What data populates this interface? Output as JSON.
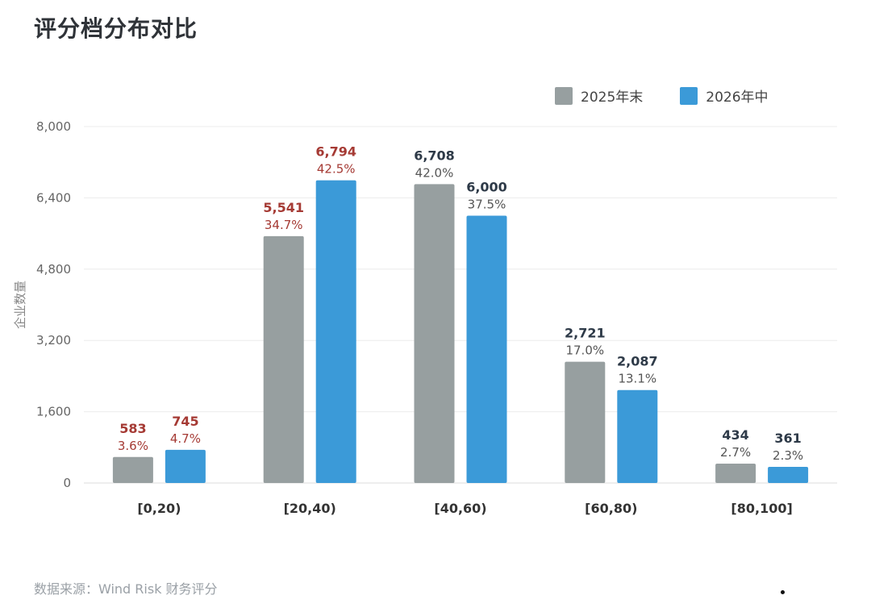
{
  "title": "评分档分布对比",
  "source": "数据来源：Wind Risk 财务评分",
  "colors": {
    "series_2025": "#979fa0",
    "series_2026": "#3b9ad8",
    "label_highlight": "#a53a34",
    "label_normal": "#2e3a48",
    "grid": "#ececec"
  },
  "chart_data": {
    "type": "bar",
    "title": "评分档分布对比",
    "xlabel": "",
    "ylabel": "企业数量",
    "ylim": [
      0,
      8000
    ],
    "yticks": [
      "0",
      "1,600",
      "3,200",
      "4,800",
      "6,400",
      "8,000"
    ],
    "ytick_values": [
      0,
      1600,
      3200,
      4800,
      6400,
      8000
    ],
    "grid": true,
    "legend_position": "top-right",
    "categories": [
      "[0,20)",
      "[20,40)",
      "[40,60)",
      "[60,80)",
      "[80,100]"
    ],
    "series": [
      {
        "name": "2025年末",
        "values": [
          583,
          5541,
          6708,
          2721,
          434
        ],
        "value_labels": [
          "583",
          "5,541",
          "6,708",
          "2,721",
          "434"
        ],
        "pct_labels": [
          "3.6%",
          "34.7%",
          "42.0%",
          "17.0%",
          "2.7%"
        ]
      },
      {
        "name": "2026年中",
        "values": [
          745,
          6794,
          6000,
          2087,
          361
        ],
        "value_labels": [
          "745",
          "6,794",
          "6,000",
          "2,087",
          "361"
        ],
        "pct_labels": [
          "4.7%",
          "42.5%",
          "37.5%",
          "13.1%",
          "2.3%"
        ]
      }
    ],
    "highlight_categories": [
      0,
      1
    ]
  }
}
